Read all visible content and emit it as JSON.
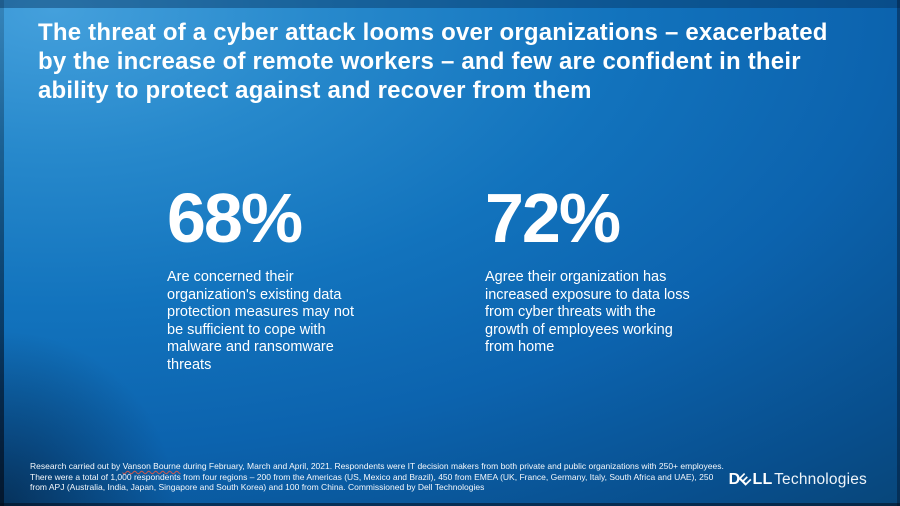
{
  "slide": {
    "title": "The threat of a cyber attack looms over organizations – exacerbated\nby the increase of remote workers – and few are confident in their\nability to protect  against and recover from them"
  },
  "stats": [
    {
      "value": "68%",
      "description": "Are concerned their\norganization's existing data\nprotection measures may not\nbe sufficient to cope with\nmalware and ransomware\nthreats"
    },
    {
      "value": "72%",
      "description": "Agree their organization has\nincreased exposure to data loss\nfrom cyber threats with the\ngrowth of employees working\nfrom home"
    }
  ],
  "footnote": {
    "prefix": "Research carried out by ",
    "source": "Vanson Bourne",
    "rest": " during February, March and April, 2021. Respondents were IT decision makers from both private and  public organizations with 250+ employees.\nThere were a total of 1,000 respondents from four regions – 200 from the Americas (US, Mexico  and Brazil), 450 from EMEA (UK, France, Germany, Italy, South Africa and UAE), 250\nfrom APJ (Australia, India, Japan, Singapore and South  Korea) and 100 from China. Commissioned by Dell Technologies"
  },
  "logo": {
    "brand_d": "D",
    "brand_e": "E",
    "brand_ll": "LL",
    "brand_suffix": "Technologies"
  },
  "colors": {
    "background_light": "#44a0dc",
    "background_mid": "#0c63ae",
    "background_dark": "#07416e",
    "text": "#ffffff",
    "spellcheck_underline": "#d05a4e"
  }
}
